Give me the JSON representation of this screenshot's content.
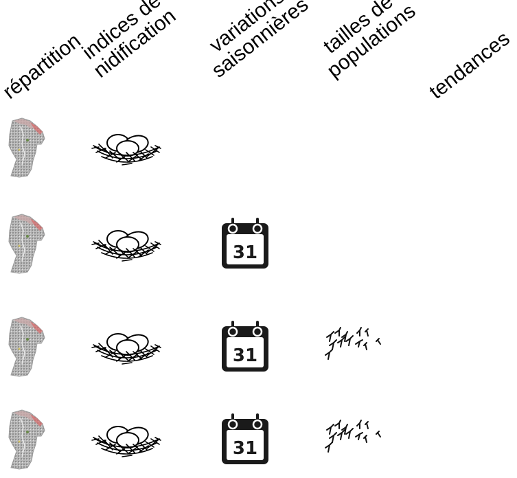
{
  "headers": {
    "repartition": "répartition",
    "nidification": [
      "indices de",
      "nidification"
    ],
    "variations": [
      "variations",
      "saisonnières"
    ],
    "populations": [
      "tailles de",
      "populations"
    ],
    "tendances": "tendances"
  },
  "calendar": {
    "day": "31",
    "color": "#1a1a1a"
  },
  "icons": {
    "map": "french-guiana-map-icon",
    "nest": "nest-with-eggs-icon",
    "calendar": "calendar-icon",
    "birds": "bird-flock-icon"
  }
}
